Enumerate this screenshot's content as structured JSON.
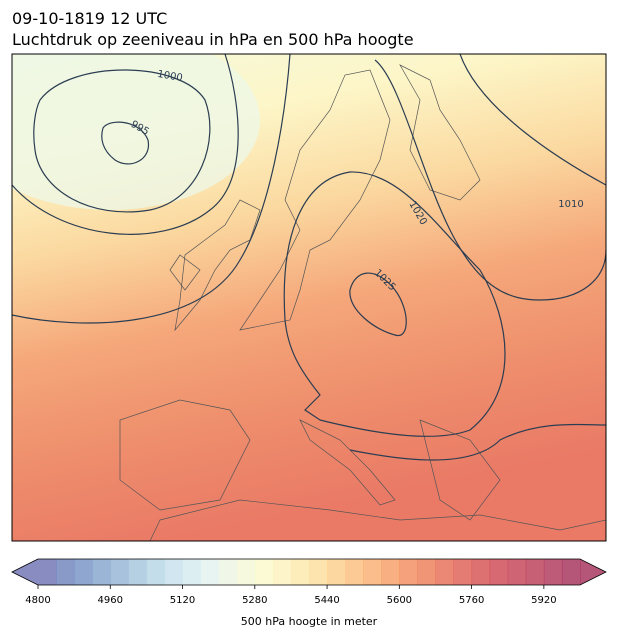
{
  "title": "09-10-1819 12 UTC",
  "subtitle": "Luchtdruk op zeeniveau in hPa en 500 hPa hoogte",
  "map": {
    "isobars": [
      1000,
      995,
      1010,
      1020,
      1025
    ]
  },
  "colorbar": {
    "label": "500 hPa hoogte in meter",
    "lim": [
      4800,
      6000
    ],
    "ticks": [
      4800,
      4960,
      5120,
      5280,
      5440,
      5600,
      5760,
      5920
    ],
    "colors": [
      "#6b6fb0",
      "#6c80ba",
      "#7391c4",
      "#82a2cc",
      "#92b3d4",
      "#a4c4dc",
      "#b5d4e5",
      "#c5e0ec",
      "#d4eaf0",
      "#e2f1ee",
      "#ecf5e3",
      "#f4f8d6",
      "#faf9cb",
      "#fdf3bc",
      "#fde9aa",
      "#fddc98",
      "#fccd88",
      "#fbbd7a",
      "#f9ac6e",
      "#f69b63",
      "#f2895a",
      "#ed7a55",
      "#e66a52",
      "#de5b50",
      "#d54d4f",
      "#cc434f",
      "#c33d51",
      "#b93753",
      "#ae3256",
      "#a22c58"
    ]
  }
}
